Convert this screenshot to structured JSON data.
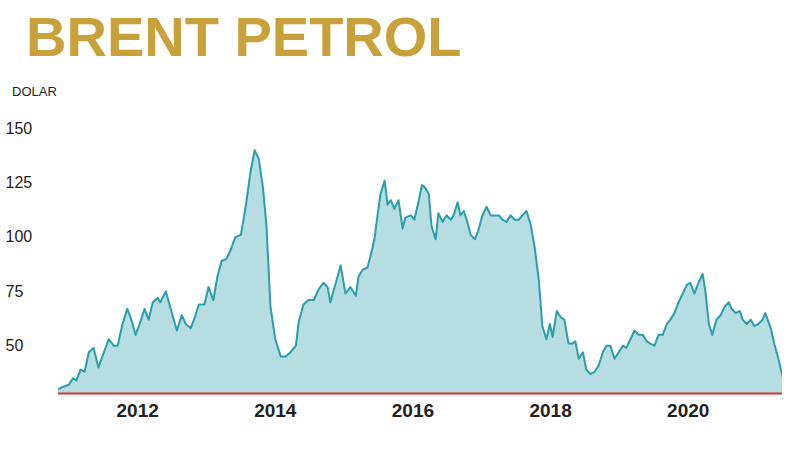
{
  "chart_data": {
    "type": "area",
    "title": "BRENT PETROL",
    "y_label": "DOLAR",
    "color": "#2b9dab",
    "grid": false,
    "x": [
      2010.85,
      2010.91,
      2011.0,
      2011.06,
      2011.11,
      2011.17,
      2011.23,
      2011.29,
      2011.36,
      2011.43,
      2011.51,
      2011.58,
      2011.65,
      2011.71,
      2011.78,
      2011.85,
      2011.91,
      2011.97,
      2012.03,
      2012.1,
      2012.16,
      2012.22,
      2012.29,
      2012.33,
      2012.41,
      2012.48,
      2012.57,
      2012.64,
      2012.7,
      2012.77,
      2012.84,
      2012.89,
      2012.97,
      2013.03,
      2013.1,
      2013.16,
      2013.22,
      2013.29,
      2013.35,
      2013.42,
      2013.5,
      2013.57,
      2013.64,
      2013.7,
      2013.76,
      2013.82,
      2013.87,
      2013.93,
      2014.0,
      2014.08,
      2014.15,
      2014.22,
      2014.3,
      2014.34,
      2014.41,
      2014.48,
      2014.56,
      2014.63,
      2014.7,
      2014.76,
      2014.8,
      2014.88,
      2014.95,
      2015.02,
      2015.09,
      2015.17,
      2015.21,
      2015.27,
      2015.34,
      2015.39,
      2015.44,
      2015.49,
      2015.53,
      2015.59,
      2015.63,
      2015.68,
      2015.73,
      2015.79,
      2015.85,
      2015.89,
      2015.97,
      2016.02,
      2016.08,
      2016.13,
      2016.17,
      2016.23,
      2016.27,
      2016.33,
      2016.37,
      2016.43,
      2016.49,
      2016.55,
      2016.59,
      2016.65,
      2016.69,
      2016.74,
      2016.79,
      2016.84,
      2016.9,
      2016.95,
      2017.01,
      2017.07,
      2017.13,
      2017.19,
      2017.25,
      2017.3,
      2017.36,
      2017.42,
      2017.48,
      2017.54,
      2017.59,
      2017.65,
      2017.71,
      2017.77,
      2017.83,
      2017.88,
      2017.94,
      2017.99,
      2018.03,
      2018.09,
      2018.15,
      2018.2,
      2018.26,
      2018.32,
      2018.36,
      2018.41,
      2018.47,
      2018.52,
      2018.58,
      2018.64,
      2018.7,
      2018.76,
      2018.81,
      2018.87,
      2018.93,
      2018.99,
      2019.05,
      2019.1,
      2019.16,
      2019.22,
      2019.28,
      2019.34,
      2019.4,
      2019.45,
      2019.51,
      2019.57,
      2019.63,
      2019.69,
      2019.74,
      2019.8,
      2019.86,
      2019.92,
      2019.98,
      2020.03,
      2020.09,
      2020.15,
      2020.21,
      2020.25,
      2020.3,
      2020.35,
      2020.41,
      2020.47,
      2020.53,
      2020.59,
      2020.63,
      2020.69,
      2020.75,
      2020.79,
      2020.85,
      2020.91,
      2020.96,
      2021.02,
      2021.08,
      2021.12,
      2021.2,
      2021.25,
      2021.31,
      2021.37
    ],
    "values": [
      30,
      31,
      32,
      35,
      34,
      39,
      38,
      47,
      49,
      40,
      47,
      53,
      50,
      50,
      60,
      67,
      62,
      55,
      60,
      67,
      62,
      70,
      72,
      70,
      75,
      67,
      57,
      64,
      60,
      58,
      64,
      69,
      69,
      77,
      71,
      82,
      89,
      90,
      94,
      100,
      101,
      114,
      130,
      140,
      136,
      123,
      106,
      68,
      53,
      45,
      45,
      47,
      50,
      61,
      69,
      71,
      71,
      76,
      79,
      77,
      70,
      79,
      87,
      74,
      77,
      73,
      82,
      85,
      86,
      92,
      99,
      111,
      120,
      126,
      115,
      117,
      113,
      117,
      104,
      109,
      110,
      108,
      116,
      124,
      123,
      120,
      105,
      99,
      111,
      107,
      110,
      108,
      110,
      116,
      110,
      112,
      107,
      101,
      99,
      103,
      110,
      114,
      110,
      110,
      110,
      108,
      107,
      110,
      108,
      108,
      110,
      112,
      106,
      95,
      80,
      59,
      53,
      60,
      54,
      66,
      63,
      62,
      51,
      51,
      52,
      44,
      47,
      39,
      37,
      38,
      41,
      47,
      50,
      50,
      44,
      47,
      50,
      49,
      53,
      57,
      55,
      55,
      52,
      51,
      50,
      55,
      55,
      60,
      62,
      65,
      70,
      74,
      78,
      79,
      74,
      79,
      83,
      75,
      60,
      55,
      62,
      64,
      68,
      70,
      67,
      65,
      66,
      62,
      60,
      62,
      59,
      60,
      62,
      65,
      58,
      51,
      44,
      36
    ],
    "xlim": [
      2010.85,
      2021.37
    ],
    "xticks": [
      2012,
      2014,
      2016,
      2018,
      2020
    ],
    "ylim": [
      28,
      150
    ],
    "yticks": [
      50,
      75,
      100,
      125,
      150
    ]
  }
}
